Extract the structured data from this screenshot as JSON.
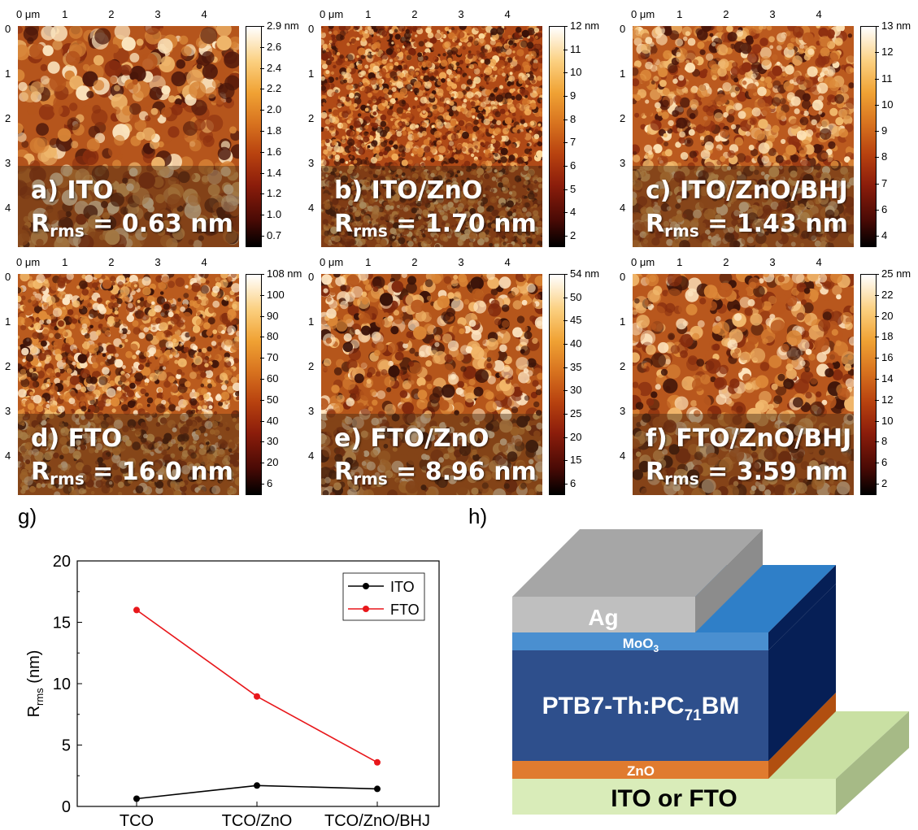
{
  "afm_panels": [
    {
      "id": "a",
      "label": "a) ITO",
      "rms_prefix": "R",
      "rms_sub": "rms",
      "rms_value": "= 0.63 nm",
      "cbar_ticks": [
        "2.9 nm",
        "2.6",
        "2.4",
        "2.2",
        "2.0",
        "1.8",
        "1.6",
        "1.4",
        "1.2",
        "1.0",
        "0.7"
      ]
    },
    {
      "id": "b",
      "label": "b) ITO/ZnO",
      "rms_prefix": "R",
      "rms_sub": "rms",
      "rms_value": "= 1.70 nm",
      "cbar_ticks": [
        "12 nm",
        "11",
        "10",
        "9",
        "8",
        "7",
        "6",
        "5",
        "4",
        "2"
      ]
    },
    {
      "id": "c",
      "label": "c) ITO/ZnO/BHJ",
      "rms_prefix": "R",
      "rms_sub": "rms",
      "rms_value": "= 1.43 nm",
      "cbar_ticks": [
        "13 nm",
        "12",
        "11",
        "10",
        "9",
        "8",
        "7",
        "6",
        "4"
      ]
    },
    {
      "id": "d",
      "label": "d) FTO",
      "rms_prefix": "R",
      "rms_sub": "rms",
      "rms_value": "= 16.0 nm",
      "cbar_ticks": [
        "108 nm",
        "100",
        "90",
        "80",
        "70",
        "60",
        "50",
        "40",
        "30",
        "20",
        "6"
      ]
    },
    {
      "id": "e",
      "label": "e) FTO/ZnO",
      "rms_prefix": "R",
      "rms_sub": "rms",
      "rms_value": "= 8.96 nm",
      "cbar_ticks": [
        "54 nm",
        "50",
        "45",
        "40",
        "35",
        "30",
        "25",
        "20",
        "15",
        "6"
      ]
    },
    {
      "id": "f",
      "label": "f) FTO/ZnO/BHJ",
      "rms_prefix": "R",
      "rms_sub": "rms",
      "rms_value": "= 3.59 nm",
      "cbar_ticks": [
        "25 nm",
        "22",
        "20",
        "18",
        "16",
        "14",
        "12",
        "10",
        "8",
        "6",
        "2"
      ]
    }
  ],
  "afm_axis": {
    "top_ticks": [
      "0 μm",
      "1",
      "2",
      "3",
      "4"
    ],
    "left_ticks": [
      "0",
      "1",
      "2",
      "3",
      "4"
    ]
  },
  "section_labels": {
    "g": "g)",
    "h": "h)"
  },
  "chart_data": {
    "type": "line",
    "categories": [
      "TCO",
      "TCO/ZnO",
      "TCO/ZnO/BHJ"
    ],
    "series": [
      {
        "name": "ITO",
        "color": "#000000",
        "values": [
          0.63,
          1.7,
          1.43
        ]
      },
      {
        "name": "FTO",
        "color": "#e8171b",
        "values": [
          16.0,
          8.96,
          3.59
        ]
      }
    ],
    "ylabel_main": "R",
    "ylabel_sub": "rms",
    "ylabel_unit": "(nm)",
    "ylim": [
      0,
      20
    ],
    "yticks": [
      "0",
      "5",
      "10",
      "15",
      "20"
    ],
    "legend_position": "top-right"
  },
  "device": {
    "layers": {
      "ag": "Ag",
      "moo3_main": "MoO",
      "moo3_sub": "3",
      "active_a": "PTB7-Th:PC",
      "active_sub": "71",
      "active_b": "BM",
      "zno": "ZnO",
      "substrate": "ITO or FTO"
    },
    "colors": {
      "ag_front": "#bfbfbf",
      "ag_top": "#a6a6a6",
      "ag_side": "#8c8c8c",
      "moo3": "#4a8fd0",
      "active_front": "#2e4f8c",
      "active_side": "#061f56",
      "active_top": "#2f7fc8",
      "zno_front": "#e07b2f",
      "zno_side": "#b14f10",
      "substrate_front": "#d9ecb9",
      "substrate_top": "#c9e0a3",
      "substrate_side": "#a6ba86"
    }
  }
}
